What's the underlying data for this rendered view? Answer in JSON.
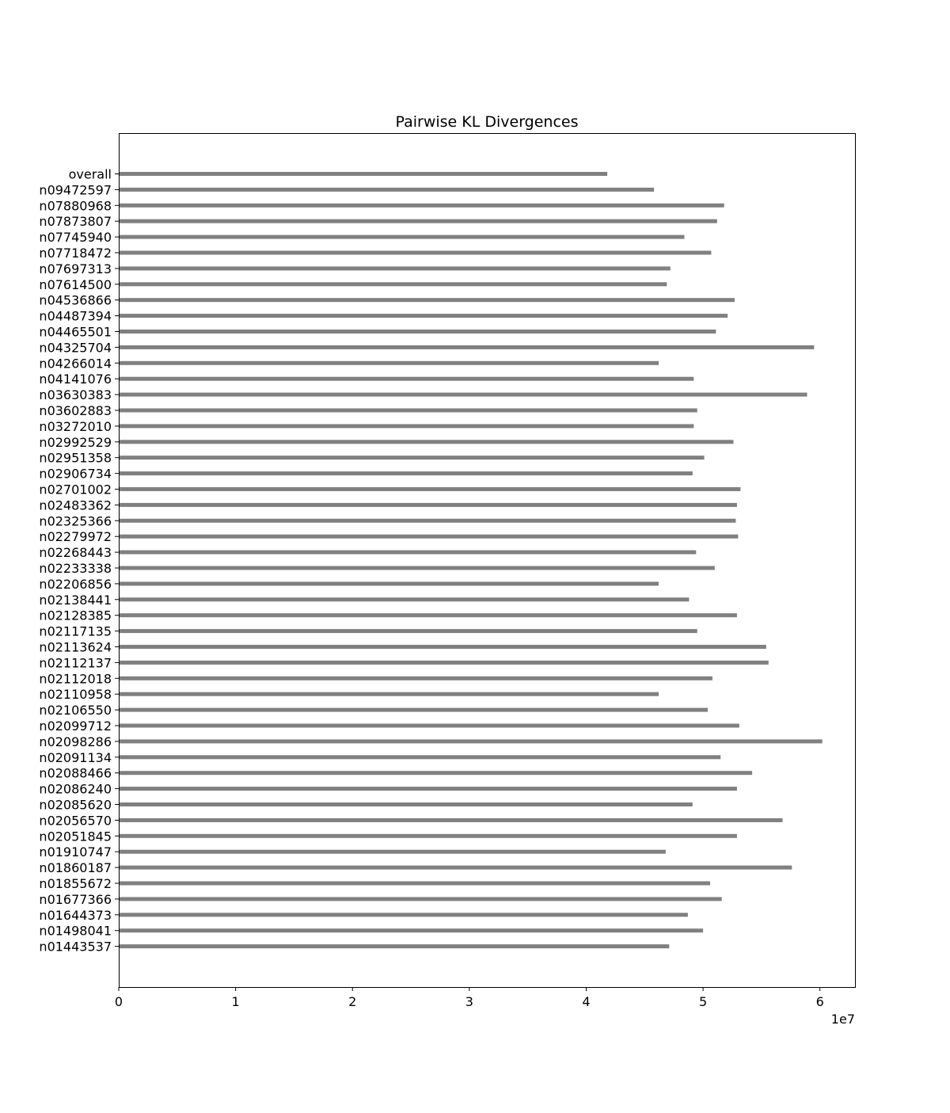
{
  "chart_data": {
    "type": "bar",
    "orientation": "horizontal",
    "title": "Pairwise KL Divergences",
    "xlabel": "",
    "ylabel": "",
    "x_offset_text": "1e7",
    "x_scale_factor": 10000000,
    "xlim": [
      0,
      63000000
    ],
    "x_ticks": [
      0,
      10000000,
      20000000,
      30000000,
      40000000,
      50000000,
      60000000
    ],
    "x_tick_labels": [
      "0",
      "1",
      "2",
      "3",
      "4",
      "5",
      "6"
    ],
    "grid": false,
    "legend": "none",
    "bar_color": "#808080",
    "categories": [
      "overall",
      "n09472597",
      "n07880968",
      "n07873807",
      "n07745940",
      "n07718472",
      "n07697313",
      "n07614500",
      "n04536866",
      "n04487394",
      "n04465501",
      "n04325704",
      "n04266014",
      "n04141076",
      "n03630383",
      "n03602883",
      "n03272010",
      "n02992529",
      "n02951358",
      "n02906734",
      "n02701002",
      "n02483362",
      "n02325366",
      "n02279972",
      "n02268443",
      "n02233338",
      "n02206856",
      "n02138441",
      "n02128385",
      "n02117135",
      "n02113624",
      "n02112137",
      "n02112018",
      "n02110958",
      "n02106550",
      "n02099712",
      "n02098286",
      "n02091134",
      "n02088466",
      "n02086240",
      "n02085620",
      "n02056570",
      "n02051845",
      "n01910747",
      "n01860187",
      "n01855672",
      "n01677366",
      "n01644373",
      "n01498041",
      "n01443537"
    ],
    "values": [
      41800000,
      45800000,
      51800000,
      51200000,
      48400000,
      50700000,
      47200000,
      46900000,
      52700000,
      52100000,
      51100000,
      59500000,
      46200000,
      49200000,
      58900000,
      49500000,
      49200000,
      52600000,
      50100000,
      49100000,
      53200000,
      52900000,
      52800000,
      53000000,
      49400000,
      51000000,
      46200000,
      48800000,
      52900000,
      49500000,
      55400000,
      55600000,
      50800000,
      46200000,
      50400000,
      53100000,
      60200000,
      51500000,
      54200000,
      52900000,
      49100000,
      56800000,
      52900000,
      46800000,
      57600000,
      50600000,
      51600000,
      48700000,
      50000000,
      47100000
    ]
  }
}
